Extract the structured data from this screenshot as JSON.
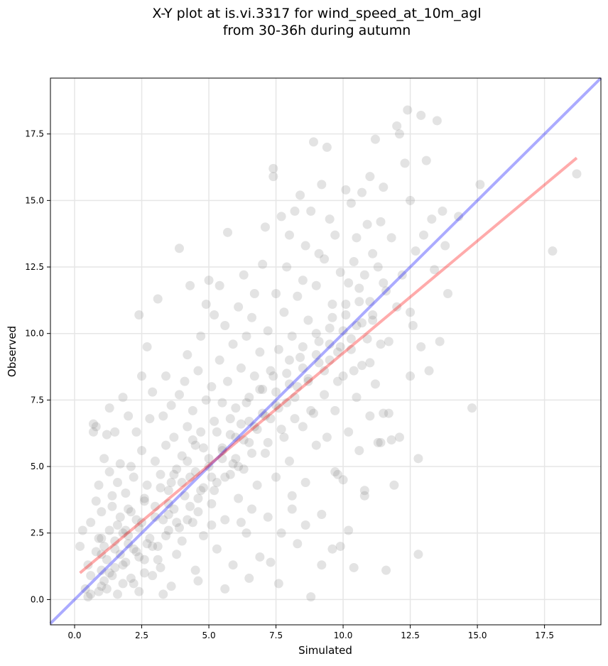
{
  "chart_data": {
    "type": "scatter",
    "title_line1": "X-Y plot at is.vi.3317 for wind_speed_at_10m_agl",
    "title_line2": "from 30-36h during autumn",
    "xlabel": "Simulated",
    "ylabel": "Observed",
    "xlim": [
      -0.9,
      19.6
    ],
    "ylim": [
      -0.95,
      19.6
    ],
    "x_ticks": [
      0.0,
      2.5,
      5.0,
      7.5,
      10.0,
      12.5,
      15.0,
      17.5
    ],
    "y_ticks": [
      0.0,
      2.5,
      5.0,
      7.5,
      10.0,
      12.5,
      15.0,
      17.5
    ],
    "x_tick_labels": [
      "0.0",
      "2.5",
      "5.0",
      "7.5",
      "10.0",
      "12.5",
      "15.0",
      "17.5"
    ],
    "y_tick_labels": [
      "0.0",
      "2.5",
      "5.0",
      "7.5",
      "10.0",
      "12.5",
      "15.0",
      "17.5"
    ],
    "grid": true,
    "marker_color": "#808080",
    "marker_opacity": 0.22,
    "identity_line": {
      "x": [
        -0.9,
        19.6
      ],
      "y": [
        -0.9,
        19.6
      ],
      "color": "#0000ff",
      "opacity": 0.33
    },
    "regression_line": {
      "x": [
        0.2,
        18.7
      ],
      "y": [
        1.0,
        16.6
      ],
      "color": "#ff0000",
      "opacity": 0.33
    },
    "points": [
      [
        0.2,
        2.0
      ],
      [
        0.3,
        2.6
      ],
      [
        0.4,
        0.4
      ],
      [
        0.5,
        0.1
      ],
      [
        0.5,
        1.3
      ],
      [
        0.6,
        2.9
      ],
      [
        0.6,
        0.9
      ],
      [
        0.7,
        6.3
      ],
      [
        0.7,
        6.6
      ],
      [
        0.8,
        3.7
      ],
      [
        0.8,
        1.8
      ],
      [
        0.9,
        0.3
      ],
      [
        0.9,
        2.3
      ],
      [
        0.9,
        4.3
      ],
      [
        1.0,
        1.1
      ],
      [
        1.0,
        0.5
      ],
      [
        1.0,
        3.3
      ],
      [
        1.1,
        5.3
      ],
      [
        1.1,
        2.0
      ],
      [
        1.1,
        0.7
      ],
      [
        1.2,
        6.2
      ],
      [
        1.2,
        1.5
      ],
      [
        1.3,
        7.2
      ],
      [
        1.3,
        4.8
      ],
      [
        1.3,
        2.6
      ],
      [
        1.4,
        3.9
      ],
      [
        1.4,
        0.9
      ],
      [
        1.5,
        6.3
      ],
      [
        1.5,
        2.2
      ],
      [
        1.5,
        1.2
      ],
      [
        1.6,
        4.4
      ],
      [
        1.6,
        0.2
      ],
      [
        1.7,
        3.1
      ],
      [
        1.7,
        5.1
      ],
      [
        1.7,
        1.7
      ],
      [
        1.8,
        7.6
      ],
      [
        1.8,
        2.5
      ],
      [
        1.8,
        0.6
      ],
      [
        1.9,
        4.0
      ],
      [
        1.9,
        1.4
      ],
      [
        2.0,
        6.9
      ],
      [
        2.0,
        3.4
      ],
      [
        2.0,
        2.1
      ],
      [
        2.1,
        5.0
      ],
      [
        2.1,
        0.8
      ],
      [
        2.2,
        4.6
      ],
      [
        2.2,
        1.9
      ],
      [
        2.3,
        3.0
      ],
      [
        2.3,
        6.3
      ],
      [
        2.4,
        10.7
      ],
      [
        2.4,
        2.7
      ],
      [
        2.4,
        0.3
      ],
      [
        2.5,
        8.4
      ],
      [
        2.5,
        5.6
      ],
      [
        2.6,
        3.8
      ],
      [
        2.6,
        1.5
      ],
      [
        2.7,
        9.5
      ],
      [
        2.7,
        4.3
      ],
      [
        2.8,
        2.3
      ],
      [
        2.8,
        6.8
      ],
      [
        2.9,
        7.8
      ],
      [
        2.9,
        0.9
      ],
      [
        3.0,
        3.5
      ],
      [
        3.0,
        5.2
      ],
      [
        3.1,
        11.3
      ],
      [
        3.1,
        2.0
      ],
      [
        3.2,
        4.7
      ],
      [
        3.2,
        1.2
      ],
      [
        3.3,
        6.9
      ],
      [
        3.3,
        3.0
      ],
      [
        3.4,
        8.4
      ],
      [
        3.4,
        5.8
      ],
      [
        3.5,
        4.1
      ],
      [
        3.5,
        2.6
      ],
      [
        3.6,
        7.3
      ],
      [
        3.6,
        0.5
      ],
      [
        3.7,
        6.1
      ],
      [
        3.7,
        3.4
      ],
      [
        3.8,
        4.9
      ],
      [
        3.8,
        1.7
      ],
      [
        3.9,
        13.2
      ],
      [
        3.9,
        7.7
      ],
      [
        4.0,
        5.4
      ],
      [
        4.0,
        2.2
      ],
      [
        4.1,
        8.2
      ],
      [
        4.1,
        3.9
      ],
      [
        4.2,
        9.2
      ],
      [
        4.2,
        6.5
      ],
      [
        4.3,
        11.8
      ],
      [
        4.3,
        4.6
      ],
      [
        4.4,
        2.9
      ],
      [
        4.4,
        7.1
      ],
      [
        4.5,
        5.8
      ],
      [
        4.5,
        1.1
      ],
      [
        4.6,
        8.6
      ],
      [
        4.6,
        3.3
      ],
      [
        4.7,
        6.3
      ],
      [
        4.7,
        9.9
      ],
      [
        4.8,
        4.2
      ],
      [
        4.8,
        2.4
      ],
      [
        4.9,
        7.5
      ],
      [
        4.9,
        11.1
      ],
      [
        5.0,
        5.0
      ],
      [
        5.0,
        12.0
      ],
      [
        5.1,
        8.0
      ],
      [
        5.1,
        3.6
      ],
      [
        5.2,
        6.7
      ],
      [
        5.2,
        10.7
      ],
      [
        5.3,
        4.4
      ],
      [
        5.3,
        1.9
      ],
      [
        5.4,
        11.8
      ],
      [
        5.4,
        9.0
      ],
      [
        5.5,
        5.7
      ],
      [
        5.5,
        7.4
      ],
      [
        5.6,
        10.3
      ],
      [
        5.6,
        3.0
      ],
      [
        5.7,
        13.8
      ],
      [
        5.7,
        8.2
      ],
      [
        5.8,
        6.2
      ],
      [
        5.8,
        4.7
      ],
      [
        5.9,
        9.6
      ],
      [
        5.9,
        1.3
      ],
      [
        6.0,
        7.2
      ],
      [
        6.0,
        5.3
      ],
      [
        6.1,
        11.0
      ],
      [
        6.1,
        3.8
      ],
      [
        6.2,
        8.7
      ],
      [
        6.2,
        6.6
      ],
      [
        6.3,
        12.2
      ],
      [
        6.3,
        4.9
      ],
      [
        6.4,
        9.9
      ],
      [
        6.4,
        2.5
      ],
      [
        6.5,
        7.6
      ],
      [
        6.5,
        5.9
      ],
      [
        6.6,
        10.6
      ],
      [
        6.6,
        3.4
      ],
      [
        6.7,
        8.4
      ],
      [
        6.7,
        11.5
      ],
      [
        6.8,
        6.4
      ],
      [
        6.8,
        4.3
      ],
      [
        6.9,
        9.3
      ],
      [
        6.9,
        1.6
      ],
      [
        7.0,
        12.6
      ],
      [
        7.0,
        7.9
      ],
      [
        7.1,
        14.0
      ],
      [
        7.1,
        5.5
      ],
      [
        7.2,
        10.1
      ],
      [
        7.2,
        3.1
      ],
      [
        7.3,
        8.6
      ],
      [
        7.3,
        6.8
      ],
      [
        7.4,
        16.2
      ],
      [
        7.4,
        15.9
      ],
      [
        7.5,
        11.5
      ],
      [
        7.5,
        4.6
      ],
      [
        7.6,
        9.4
      ],
      [
        7.6,
        7.2
      ],
      [
        7.7,
        14.4
      ],
      [
        7.7,
        2.5
      ],
      [
        7.8,
        10.8
      ],
      [
        7.8,
        6.1
      ],
      [
        7.9,
        12.5
      ],
      [
        7.9,
        8.5
      ],
      [
        8.0,
        5.2
      ],
      [
        8.0,
        13.7
      ],
      [
        8.1,
        9.9
      ],
      [
        8.1,
        3.9
      ],
      [
        8.2,
        14.6
      ],
      [
        8.2,
        7.6
      ],
      [
        8.3,
        11.4
      ],
      [
        8.3,
        2.1
      ],
      [
        8.4,
        15.2
      ],
      [
        8.4,
        9.1
      ],
      [
        8.5,
        6.5
      ],
      [
        8.5,
        12.0
      ],
      [
        8.6,
        13.3
      ],
      [
        8.6,
        4.4
      ],
      [
        8.7,
        10.5
      ],
      [
        8.7,
        8.2
      ],
      [
        8.8,
        14.6
      ],
      [
        8.8,
        0.1
      ],
      [
        8.9,
        17.2
      ],
      [
        8.9,
        7.0
      ],
      [
        9.0,
        11.8
      ],
      [
        9.0,
        5.8
      ],
      [
        9.1,
        13.0
      ],
      [
        9.1,
        9.7
      ],
      [
        9.2,
        15.6
      ],
      [
        9.2,
        3.2
      ],
      [
        9.3,
        12.8
      ],
      [
        9.3,
        8.6
      ],
      [
        9.4,
        17.0
      ],
      [
        9.4,
        6.1
      ],
      [
        9.5,
        14.3
      ],
      [
        9.5,
        10.2
      ],
      [
        9.6,
        11.1
      ],
      [
        9.6,
        1.9
      ],
      [
        9.7,
        13.7
      ],
      [
        9.7,
        7.1
      ],
      [
        9.8,
        9.3
      ],
      [
        9.8,
        4.7
      ],
      [
        9.9,
        12.3
      ],
      [
        9.9,
        2.0
      ],
      [
        10.0,
        8.4
      ],
      [
        10.0,
        4.5
      ],
      [
        10.1,
        15.4
      ],
      [
        10.1,
        10.7
      ],
      [
        10.2,
        11.9
      ],
      [
        10.2,
        6.3
      ],
      [
        10.3,
        14.9
      ],
      [
        10.3,
        9.4
      ],
      [
        10.4,
        12.7
      ],
      [
        10.4,
        1.2
      ],
      [
        10.5,
        7.6
      ],
      [
        10.5,
        13.6
      ],
      [
        10.6,
        11.2
      ],
      [
        10.6,
        5.6
      ],
      [
        10.7,
        15.3
      ],
      [
        10.7,
        8.8
      ],
      [
        10.8,
        12.2
      ],
      [
        10.8,
        3.9
      ],
      [
        10.9,
        14.1
      ],
      [
        10.9,
        9.8
      ],
      [
        11.0,
        6.9
      ],
      [
        11.0,
        15.9
      ],
      [
        11.1,
        10.5
      ],
      [
        11.1,
        13.0
      ],
      [
        11.2,
        8.1
      ],
      [
        11.2,
        17.3
      ],
      [
        11.3,
        12.5
      ],
      [
        11.3,
        5.9
      ],
      [
        11.4,
        14.2
      ],
      [
        11.4,
        9.6
      ],
      [
        11.5,
        7.0
      ],
      [
        11.5,
        15.5
      ],
      [
        11.6,
        1.1
      ],
      [
        11.6,
        11.6
      ],
      [
        11.7,
        9.7
      ],
      [
        11.8,
        13.6
      ],
      [
        11.8,
        6.0
      ],
      [
        11.9,
        4.3
      ],
      [
        12.0,
        17.8
      ],
      [
        12.0,
        11.0
      ],
      [
        12.1,
        17.5
      ],
      [
        12.2,
        12.2
      ],
      [
        12.3,
        16.4
      ],
      [
        12.4,
        18.4
      ],
      [
        12.5,
        15.0
      ],
      [
        12.5,
        8.4
      ],
      [
        12.6,
        10.3
      ],
      [
        12.7,
        13.1
      ],
      [
        12.8,
        1.7
      ],
      [
        12.8,
        5.3
      ],
      [
        12.9,
        9.5
      ],
      [
        12.9,
        18.2
      ],
      [
        13.0,
        13.7
      ],
      [
        13.1,
        16.5
      ],
      [
        13.2,
        8.6
      ],
      [
        13.3,
        14.3
      ],
      [
        13.4,
        12.4
      ],
      [
        13.5,
        18.0
      ],
      [
        13.6,
        9.7
      ],
      [
        13.7,
        14.6
      ],
      [
        13.8,
        13.3
      ],
      [
        13.9,
        11.5
      ],
      [
        14.3,
        14.4
      ],
      [
        14.8,
        7.2
      ],
      [
        15.1,
        15.6
      ],
      [
        17.8,
        13.1
      ],
      [
        18.7,
        16.0
      ],
      [
        0.8,
        6.5
      ],
      [
        1.2,
        0.4
      ],
      [
        1.4,
        3.5
      ],
      [
        2.2,
        0.6
      ],
      [
        2.6,
        1.0
      ],
      [
        3.3,
        0.2
      ],
      [
        3.6,
        4.4
      ],
      [
        4.4,
        6.0
      ],
      [
        4.6,
        0.7
      ],
      [
        5.1,
        2.8
      ],
      [
        5.6,
        0.4
      ],
      [
        6.2,
        2.9
      ],
      [
        6.5,
        0.8
      ],
      [
        7.3,
        1.4
      ],
      [
        7.6,
        0.6
      ],
      [
        8.1,
        3.4
      ],
      [
        8.6,
        2.8
      ],
      [
        9.2,
        1.3
      ],
      [
        9.7,
        4.8
      ],
      [
        10.2,
        2.6
      ],
      [
        10.8,
        4.1
      ],
      [
        11.4,
        5.9
      ],
      [
        11.7,
        7.0
      ],
      [
        12.1,
        6.1
      ],
      [
        12.5,
        10.8
      ],
      [
        1.9,
        2.6
      ],
      [
        2.3,
        1.8
      ],
      [
        2.7,
        2.1
      ],
      [
        3.1,
        1.5
      ],
      [
        3.5,
        3.2
      ],
      [
        3.9,
        2.7
      ],
      [
        4.3,
        3.5
      ],
      [
        4.7,
        4.1
      ],
      [
        5.1,
        4.6
      ],
      [
        5.5,
        5.3
      ],
      [
        5.9,
        5.1
      ],
      [
        6.3,
        6.0
      ],
      [
        6.7,
        6.5
      ],
      [
        7.1,
        6.9
      ],
      [
        7.5,
        7.3
      ],
      [
        7.9,
        7.4
      ],
      [
        8.3,
        8.0
      ],
      [
        8.7,
        8.3
      ],
      [
        9.1,
        8.9
      ],
      [
        9.5,
        9.0
      ],
      [
        9.9,
        9.5
      ],
      [
        10.3,
        9.8
      ],
      [
        10.7,
        10.4
      ],
      [
        11.1,
        10.7
      ],
      [
        1.0,
        1.7
      ],
      [
        1.5,
        1.9
      ],
      [
        2.0,
        2.4
      ],
      [
        2.5,
        2.9
      ],
      [
        3.0,
        3.1
      ],
      [
        3.5,
        3.6
      ],
      [
        4.0,
        4.4
      ],
      [
        4.5,
        4.8
      ],
      [
        5.0,
        5.3
      ],
      [
        5.5,
        5.6
      ],
      [
        6.0,
        6.1
      ],
      [
        6.5,
        6.7
      ],
      [
        7.0,
        7.0
      ],
      [
        7.5,
        7.8
      ],
      [
        8.0,
        8.1
      ],
      [
        8.5,
        8.7
      ],
      [
        9.0,
        9.2
      ],
      [
        9.5,
        9.6
      ],
      [
        10.0,
        10.1
      ],
      [
        10.5,
        10.3
      ],
      [
        11.0,
        11.2
      ],
      [
        11.5,
        11.9
      ],
      [
        1.3,
        1.0
      ],
      [
        1.8,
        1.3
      ],
      [
        2.4,
        1.6
      ],
      [
        2.9,
        2.0
      ],
      [
        3.4,
        2.4
      ],
      [
        3.8,
        2.9
      ],
      [
        4.2,
        3.0
      ],
      [
        4.6,
        3.8
      ],
      [
        5.2,
        4.1
      ],
      [
        5.6,
        4.6
      ],
      [
        6.1,
        5.0
      ],
      [
        6.6,
        5.5
      ],
      [
        7.2,
        5.9
      ],
      [
        7.7,
        6.4
      ],
      [
        8.2,
        6.8
      ],
      [
        8.8,
        7.1
      ],
      [
        9.3,
        7.7
      ],
      [
        9.8,
        8.2
      ],
      [
        10.4,
        8.6
      ],
      [
        11.0,
        8.9
      ],
      [
        0.6,
        0.2
      ],
      [
        1.0,
        2.3
      ],
      [
        1.6,
        2.8
      ],
      [
        2.1,
        3.3
      ],
      [
        2.6,
        3.7
      ],
      [
        3.2,
        4.2
      ],
      [
        3.7,
        4.7
      ],
      [
        4.2,
        5.2
      ],
      [
        4.8,
        5.7
      ],
      [
        5.3,
        6.3
      ],
      [
        5.8,
        6.8
      ],
      [
        6.4,
        7.4
      ],
      [
        6.9,
        7.9
      ],
      [
        7.4,
        8.4
      ],
      [
        8.0,
        9.0
      ],
      [
        8.5,
        9.5
      ],
      [
        9.0,
        10.0
      ],
      [
        9.6,
        10.6
      ],
      [
        10.1,
        11.1
      ],
      [
        10.6,
        11.7
      ]
    ]
  }
}
